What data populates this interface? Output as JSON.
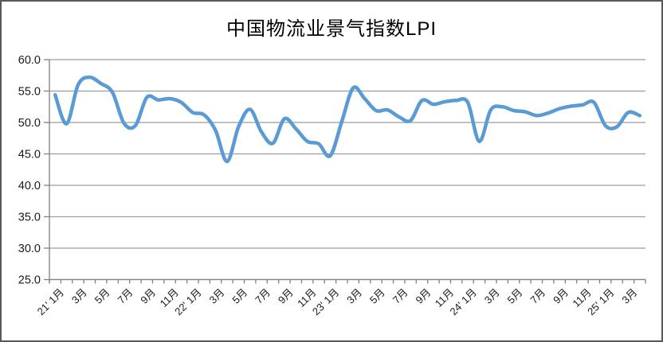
{
  "chart": {
    "title": "中国物流业景气指数LPI"
  },
  "chart_data": {
    "type": "line",
    "title": "中国物流业景气指数LPI",
    "xlabel": "",
    "ylabel": "",
    "legend": "none",
    "grid": true,
    "smoothed": true,
    "ylim": [
      25,
      60
    ],
    "y_tick_step": 5,
    "y_tick_labels": [
      "60.0",
      "55.0",
      "50.0",
      "45.0",
      "40.0",
      "35.0",
      "30.0",
      "25.0"
    ],
    "x_tick_labels": [
      "21' 1月",
      "3月",
      "5月",
      "7月",
      "9月",
      "11月",
      "22' 1月",
      "3月",
      "5月",
      "7月",
      "9月",
      "11月",
      "23' 1月",
      "3月",
      "5月",
      "7月",
      "9月",
      "11月",
      "24' 1月",
      "3月",
      "5月",
      "7月",
      "9月",
      "11月",
      "25' 1月",
      "3月"
    ],
    "categories": [
      "2021-01",
      "2021-02",
      "2021-03",
      "2021-04",
      "2021-05",
      "2021-06",
      "2021-07",
      "2021-08",
      "2021-09",
      "2021-10",
      "2021-11",
      "2021-12",
      "2022-01",
      "2022-02",
      "2022-03",
      "2022-04",
      "2022-05",
      "2022-06",
      "2022-07",
      "2022-08",
      "2022-09",
      "2022-10",
      "2022-11",
      "2022-12",
      "2023-01",
      "2023-02",
      "2023-03",
      "2023-04",
      "2023-05",
      "2023-06",
      "2023-07",
      "2023-08",
      "2023-09",
      "2023-10",
      "2023-11",
      "2023-12",
      "2024-01",
      "2024-02",
      "2024-03",
      "2024-04",
      "2024-05",
      "2024-06",
      "2024-07",
      "2024-08",
      "2024-09",
      "2024-10",
      "2024-11",
      "2024-12",
      "2025-01",
      "2025-02",
      "2025-03",
      "2025-04"
    ],
    "series": [
      {
        "name": "中国物流业景气指数LPI",
        "values": [
          54.4,
          49.8,
          56.0,
          57.2,
          56.2,
          54.8,
          49.9,
          49.5,
          54.0,
          53.6,
          53.8,
          53.2,
          51.6,
          51.2,
          48.7,
          43.8,
          49.3,
          52.1,
          48.5,
          46.7,
          50.6,
          49.0,
          47.0,
          46.6,
          44.7,
          50.1,
          55.5,
          53.8,
          51.9,
          52.0,
          50.9,
          50.3,
          53.5,
          52.9,
          53.3,
          53.5,
          53.2,
          47.0,
          52.0,
          52.5,
          51.9,
          51.7,
          51.1,
          51.5,
          52.2,
          52.6,
          52.8,
          53.2,
          49.5,
          49.3,
          51.6,
          51.1
        ]
      }
    ],
    "line_color": "#5B9BD5",
    "gridline_color": "#9c9c9c",
    "axis_color": "#808080",
    "tick_label_color": "#1a1a1a"
  }
}
